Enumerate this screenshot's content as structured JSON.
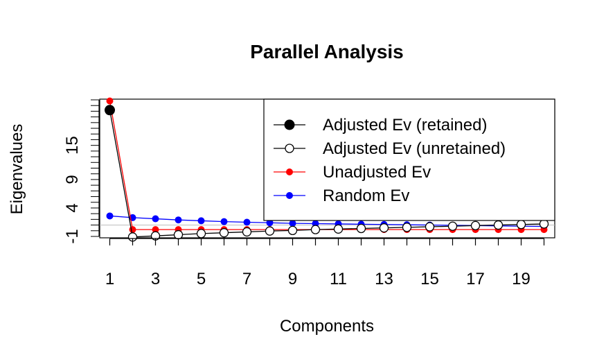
{
  "chart_data": {
    "type": "line",
    "title": "Parallel Analysis",
    "xlabel": "Components",
    "ylabel": "Eigenvalues",
    "xlim": [
      1,
      20
    ],
    "ylim": [
      -1,
      23
    ],
    "x_ticks": [
      1,
      3,
      5,
      7,
      9,
      11,
      13,
      15,
      17,
      19
    ],
    "y_ticks": [
      -1,
      4,
      9,
      15
    ],
    "y_minor_ticks": [
      -1,
      0,
      1,
      2,
      3,
      4,
      5,
      6,
      7,
      8,
      9,
      10,
      11,
      12,
      13,
      14,
      15,
      16,
      17,
      18,
      19,
      20,
      21,
      22,
      23
    ],
    "reference_line_y": 1,
    "legend_position": "top-right",
    "x": [
      1,
      2,
      3,
      4,
      5,
      6,
      7,
      8,
      9,
      10,
      11,
      12,
      13,
      14,
      15,
      16,
      17,
      18,
      19,
      20
    ],
    "series": [
      {
        "name": "Random Ev",
        "color": "#0000ff",
        "marker": "filled-small",
        "values": [
          2.6,
          2.3,
          2.1,
          1.9,
          1.75,
          1.6,
          1.5,
          1.4,
          1.3,
          1.25,
          1.2,
          1.15,
          1.1,
          1.05,
          1.0,
          0.95,
          0.9,
          0.85,
          0.8,
          0.75
        ]
      },
      {
        "name": "Unadjusted Ev",
        "color": "#ff0000",
        "marker": "filled-small",
        "values": [
          22.8,
          0.2,
          0.2,
          0.2,
          0.2,
          0.2,
          0.2,
          0.2,
          0.2,
          0.2,
          0.2,
          0.2,
          0.2,
          0.2,
          0.2,
          0.2,
          0.2,
          0.2,
          0.2,
          0.2
        ]
      },
      {
        "name": "Adjusted Ev (unretained)",
        "color": "#000000",
        "marker": "open",
        "x": [
          2,
          3,
          4,
          5,
          6,
          7,
          8,
          9,
          10,
          11,
          12,
          13,
          14,
          15,
          16,
          17,
          18,
          19,
          20
        ],
        "values": [
          -1.1,
          -0.9,
          -0.7,
          -0.5,
          -0.35,
          -0.2,
          -0.05,
          0.05,
          0.2,
          0.3,
          0.4,
          0.5,
          0.6,
          0.7,
          0.8,
          0.9,
          1.0,
          1.1,
          1.2
        ]
      },
      {
        "name": "Adjusted Ev (retained)",
        "color": "#000000",
        "marker": "filled-large",
        "x": [
          1
        ],
        "values": [
          21.2
        ]
      }
    ],
    "legend": [
      {
        "label": "Adjusted Ev (retained)",
        "color": "#000000",
        "marker": "filled-large"
      },
      {
        "label": "Adjusted Ev (unretained)",
        "color": "#000000",
        "marker": "open"
      },
      {
        "label": "Unadjusted Ev",
        "color": "#ff0000",
        "marker": "filled-small"
      },
      {
        "label": "Random Ev",
        "color": "#0000ff",
        "marker": "filled-small"
      }
    ]
  }
}
